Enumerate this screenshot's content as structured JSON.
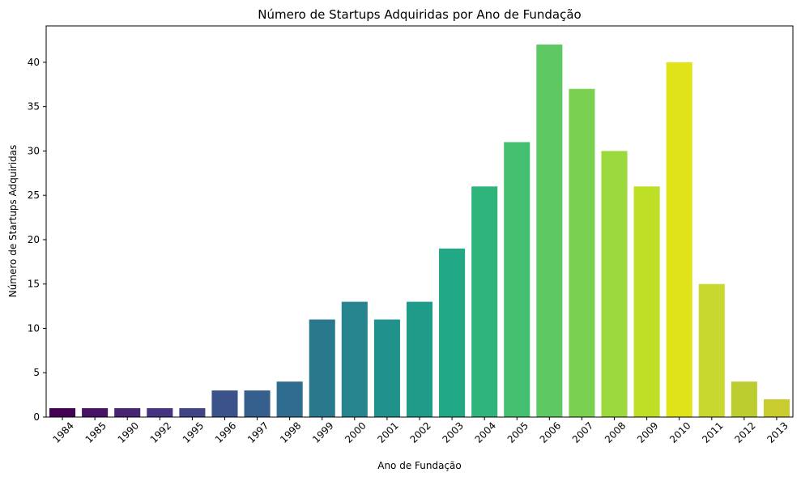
{
  "chart_data": {
    "type": "bar",
    "title": "Número de Startups Adquiridas por Ano de Fundação",
    "xlabel": "Ano de Fundação",
    "ylabel": "Número de Startups Adquiridas",
    "categories": [
      "1984",
      "1985",
      "1990",
      "1992",
      "1995",
      "1996",
      "1997",
      "1998",
      "1999",
      "2000",
      "2001",
      "2002",
      "2003",
      "2004",
      "2005",
      "2006",
      "2007",
      "2008",
      "2009",
      "2010",
      "2011",
      "2012",
      "2013"
    ],
    "values": [
      1,
      1,
      1,
      1,
      1,
      3,
      3,
      4,
      11,
      13,
      11,
      13,
      19,
      26,
      31,
      42,
      37,
      30,
      26,
      40,
      15,
      4,
      2
    ],
    "colors": [
      "#440154",
      "#471365",
      "#482475",
      "#463480",
      "#414487",
      "#3b528b",
      "#355f8d",
      "#2f6c8e",
      "#2a788e",
      "#25848e",
      "#21918c",
      "#1e9c89",
      "#22a884",
      "#2fb47c",
      "#44bf70",
      "#5ec962",
      "#7ad151",
      "#9bd93c",
      "#bddf26",
      "#dfe318",
      "#c8d82e",
      "#bccd2f",
      "#c9cc2e"
    ],
    "bar_colors_palette": "viridis",
    "yticks": [
      0,
      5,
      10,
      15,
      20,
      25,
      30,
      35,
      40
    ],
    "ylim": [
      0,
      44.1
    ],
    "grid": false,
    "legend": "none"
  }
}
